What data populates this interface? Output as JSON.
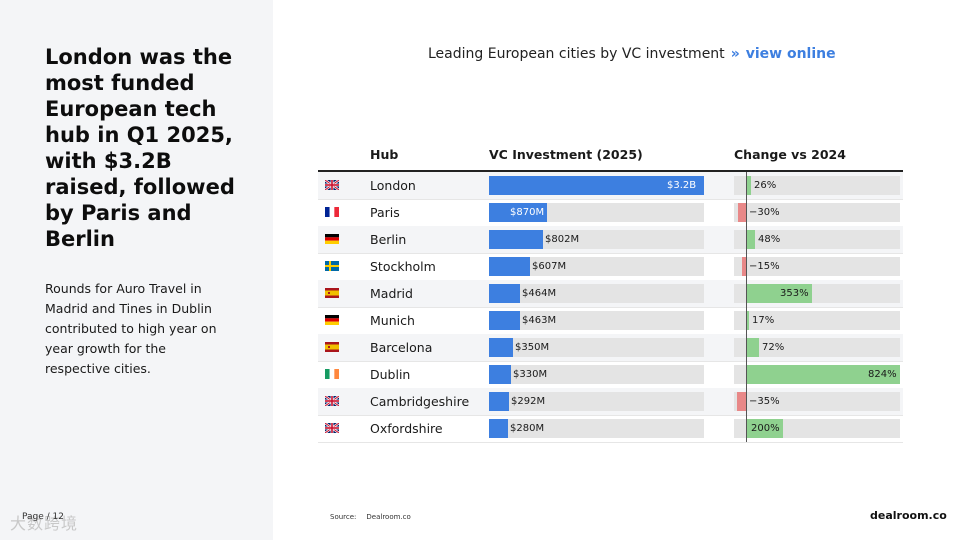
{
  "slide": {
    "headline": "London was the most funded European tech hub in Q1 2025, with $3.2B raised, followed by Paris and Berlin",
    "subtext": "Rounds for Auro Travel in Madrid and Tines in Dublin contributed to high year on year growth for the respective cities.",
    "page": "Page / 12",
    "source_label": "Source:",
    "source_value": "Dealroom.co",
    "brand": "dealroom.co",
    "watermark": "大数跨境"
  },
  "colors": {
    "investment_bar": "#3d7fe0",
    "change_positive": "#8fd18f",
    "change_negative": "#e88888",
    "track": "#e4e4e4",
    "link": "#3d7fe0"
  },
  "chart_data": {
    "type": "table",
    "title": "Leading European cities by VC investment",
    "title_separator": "»",
    "title_link": "view online",
    "columns": [
      "Hub",
      "VC Investment (2025)",
      "Change vs 2024"
    ],
    "investment_unit": "USD millions",
    "change_unit": "percent",
    "rows": [
      {
        "hub": "London",
        "flag": "uk-flag-icon",
        "investment": 3200,
        "investment_label": "$3.2B",
        "change": 26,
        "change_label": "26%"
      },
      {
        "hub": "Paris",
        "flag": "france-flag-icon",
        "investment": 870,
        "investment_label": "$870M",
        "change": -30,
        "change_label": "−30%"
      },
      {
        "hub": "Berlin",
        "flag": "germany-flag-icon",
        "investment": 802,
        "investment_label": "$802M",
        "change": 48,
        "change_label": "48%"
      },
      {
        "hub": "Stockholm",
        "flag": "sweden-flag-icon",
        "investment": 607,
        "investment_label": "$607M",
        "change": -15,
        "change_label": "−15%"
      },
      {
        "hub": "Madrid",
        "flag": "spain-flag-icon",
        "investment": 464,
        "investment_label": "$464M",
        "change": 353,
        "change_label": "353%"
      },
      {
        "hub": "Munich",
        "flag": "germany-flag-icon",
        "investment": 463,
        "investment_label": "$463M",
        "change": 17,
        "change_label": "17%"
      },
      {
        "hub": "Barcelona",
        "flag": "spain-flag-icon",
        "investment": 350,
        "investment_label": "$350M",
        "change": 72,
        "change_label": "72%"
      },
      {
        "hub": "Dublin",
        "flag": "ireland-flag-icon",
        "investment": 330,
        "investment_label": "$330M",
        "change": 824,
        "change_label": "824%"
      },
      {
        "hub": "Cambridgeshire",
        "flag": "uk-flag-icon",
        "investment": 292,
        "investment_label": "$292M",
        "change": -35,
        "change_label": "−35%"
      },
      {
        "hub": "Oxfordshire",
        "flag": "uk-flag-icon",
        "investment": 280,
        "investment_label": "$280M",
        "change": 200,
        "change_label": "200%"
      }
    ]
  }
}
